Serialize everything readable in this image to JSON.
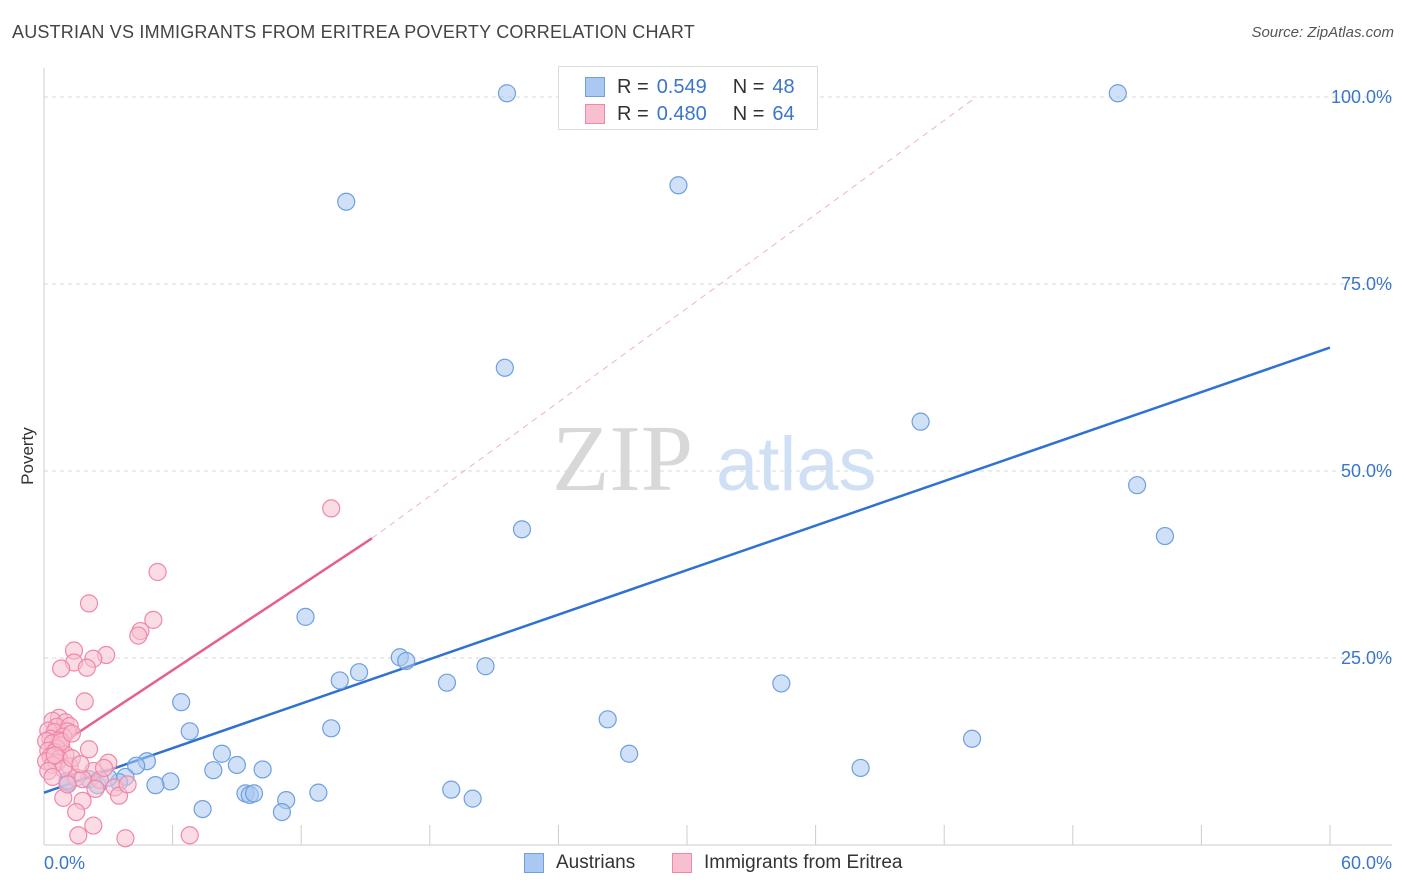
{
  "header": {
    "title": "AUSTRIAN VS IMMIGRANTS FROM ERITREA POVERTY CORRELATION CHART",
    "source": "Source: ZipAtlas.com"
  },
  "watermark": {
    "zip": "ZIP",
    "atlas": "atlas"
  },
  "legend": {
    "rows": [
      {
        "r_label": "R =",
        "r_value": "0.549",
        "n_label": "N =",
        "n_value": "48"
      },
      {
        "r_label": "R =",
        "r_value": "0.480",
        "n_label": "N =",
        "n_value": "64"
      }
    ]
  },
  "bottom_legend": {
    "series1": "Austrians",
    "series2": "Immigrants from Eritrea"
  },
  "colors": {
    "austrians_fill": "#aac8f0",
    "austrians_stroke": "#6f9fe0",
    "austrians_line": "#2f72d0",
    "eritrea_fill": "#f7bfd0",
    "eritrea_stroke": "#ef88a8",
    "eritrea_line": "#e5608a",
    "grid": "#d8d8d8",
    "tick_text": "#3a76c9"
  },
  "chart_data": {
    "type": "scatter",
    "title": "AUSTRIAN VS IMMIGRANTS FROM ERITREA POVERTY CORRELATION CHART",
    "xlabel": "",
    "ylabel": "Poverty",
    "xlim": [
      0,
      60
    ],
    "ylim": [
      0,
      100
    ],
    "x_tick_labels": [
      "0.0%",
      "60.0%"
    ],
    "y_ticks": [
      25,
      50,
      75,
      100
    ],
    "y_tick_labels": [
      "25.0%",
      "50.0%",
      "75.0%",
      "100.0%"
    ],
    "series": [
      {
        "name": "Austrians",
        "R": 0.549,
        "N": 48,
        "trend": {
          "x": [
            0,
            60
          ],
          "y": [
            7.0,
            66.5
          ],
          "style": "solid"
        },
        "points": [
          [
            21.6,
            100.5
          ],
          [
            50.1,
            100.5
          ],
          [
            14.1,
            86.0
          ],
          [
            29.6,
            88.2
          ],
          [
            21.5,
            63.8
          ],
          [
            40.9,
            56.6
          ],
          [
            51.0,
            48.1
          ],
          [
            52.3,
            41.3
          ],
          [
            22.3,
            42.2
          ],
          [
            12.2,
            30.5
          ],
          [
            16.6,
            25.1
          ],
          [
            16.9,
            24.6
          ],
          [
            20.6,
            23.9
          ],
          [
            14.7,
            23.1
          ],
          [
            13.8,
            22.0
          ],
          [
            18.8,
            21.7
          ],
          [
            34.4,
            21.6
          ],
          [
            6.4,
            19.1
          ],
          [
            26.3,
            16.8
          ],
          [
            6.8,
            15.2
          ],
          [
            13.4,
            15.6
          ],
          [
            8.3,
            12.2
          ],
          [
            27.3,
            12.2
          ],
          [
            43.3,
            14.2
          ],
          [
            4.8,
            11.2
          ],
          [
            4.3,
            10.6
          ],
          [
            9.0,
            10.7
          ],
          [
            38.1,
            10.3
          ],
          [
            7.9,
            10.0
          ],
          [
            10.2,
            10.1
          ],
          [
            3.8,
            9.1
          ],
          [
            5.9,
            8.5
          ],
          [
            2.1,
            8.8
          ],
          [
            3.5,
            8.4
          ],
          [
            1.1,
            8.3
          ],
          [
            2.5,
            8.0
          ],
          [
            5.2,
            8.0
          ],
          [
            9.4,
            6.9
          ],
          [
            9.6,
            6.7
          ],
          [
            12.8,
            7.0
          ],
          [
            19.0,
            7.4
          ],
          [
            20.0,
            6.2
          ],
          [
            11.3,
            6.0
          ],
          [
            7.4,
            4.8
          ],
          [
            11.1,
            4.4
          ],
          [
            1.1,
            8.6
          ],
          [
            3.0,
            9.0
          ],
          [
            9.8,
            6.9
          ]
        ]
      },
      {
        "name": "Immigrants from Eritrea",
        "R": 0.48,
        "N": 64,
        "trend": {
          "x": [
            0,
            15.3
          ],
          "y": [
            12.0,
            41.0
          ],
          "style": "solid",
          "extension": {
            "x": [
              15.3,
              43.5
            ],
            "y": [
              41.0,
              100.0
            ],
            "style": "dashed"
          }
        },
        "points": [
          [
            13.4,
            45.0
          ],
          [
            5.3,
            36.5
          ],
          [
            2.1,
            32.3
          ],
          [
            5.1,
            30.1
          ],
          [
            4.5,
            28.6
          ],
          [
            4.4,
            28.0
          ],
          [
            1.4,
            26.0
          ],
          [
            2.9,
            25.4
          ],
          [
            2.3,
            24.9
          ],
          [
            1.4,
            24.4
          ],
          [
            2.0,
            23.7
          ],
          [
            0.8,
            23.6
          ],
          [
            1.9,
            19.2
          ],
          [
            0.7,
            17.0
          ],
          [
            0.4,
            16.6
          ],
          [
            1.0,
            16.4
          ],
          [
            0.6,
            15.8
          ],
          [
            1.2,
            15.9
          ],
          [
            0.2,
            15.3
          ],
          [
            0.5,
            15.1
          ],
          [
            1.1,
            15.2
          ],
          [
            0.9,
            14.5
          ],
          [
            0.3,
            14.2
          ],
          [
            0.7,
            14.0
          ],
          [
            0.1,
            13.9
          ],
          [
            0.4,
            13.6
          ],
          [
            0.8,
            13.3
          ],
          [
            0.6,
            12.9
          ],
          [
            0.2,
            12.6
          ],
          [
            0.5,
            12.4
          ],
          [
            1.0,
            12.1
          ],
          [
            0.3,
            11.8
          ],
          [
            0.7,
            11.5
          ],
          [
            0.1,
            11.2
          ],
          [
            0.6,
            11.0
          ],
          [
            0.4,
            10.7
          ],
          [
            1.2,
            10.5
          ],
          [
            0.9,
            10.2
          ],
          [
            0.2,
            9.9
          ],
          [
            1.3,
            11.6
          ],
          [
            2.1,
            12.8
          ],
          [
            3.0,
            11.0
          ],
          [
            2.3,
            9.9
          ],
          [
            1.5,
            9.0
          ],
          [
            1.8,
            8.8
          ],
          [
            2.6,
            8.7
          ],
          [
            2.4,
            7.5
          ],
          [
            3.3,
            7.7
          ],
          [
            3.5,
            6.6
          ],
          [
            0.9,
            6.3
          ],
          [
            1.8,
            5.9
          ],
          [
            1.5,
            4.4
          ],
          [
            2.3,
            2.6
          ],
          [
            1.6,
            1.3
          ],
          [
            3.8,
            0.9
          ],
          [
            6.8,
            1.3
          ],
          [
            1.1,
            8.1
          ],
          [
            0.4,
            9.1
          ],
          [
            1.7,
            10.8
          ],
          [
            0.8,
            13.8
          ],
          [
            1.3,
            14.9
          ],
          [
            0.5,
            12.0
          ],
          [
            2.8,
            10.3
          ],
          [
            3.9,
            8.1
          ]
        ]
      }
    ]
  }
}
